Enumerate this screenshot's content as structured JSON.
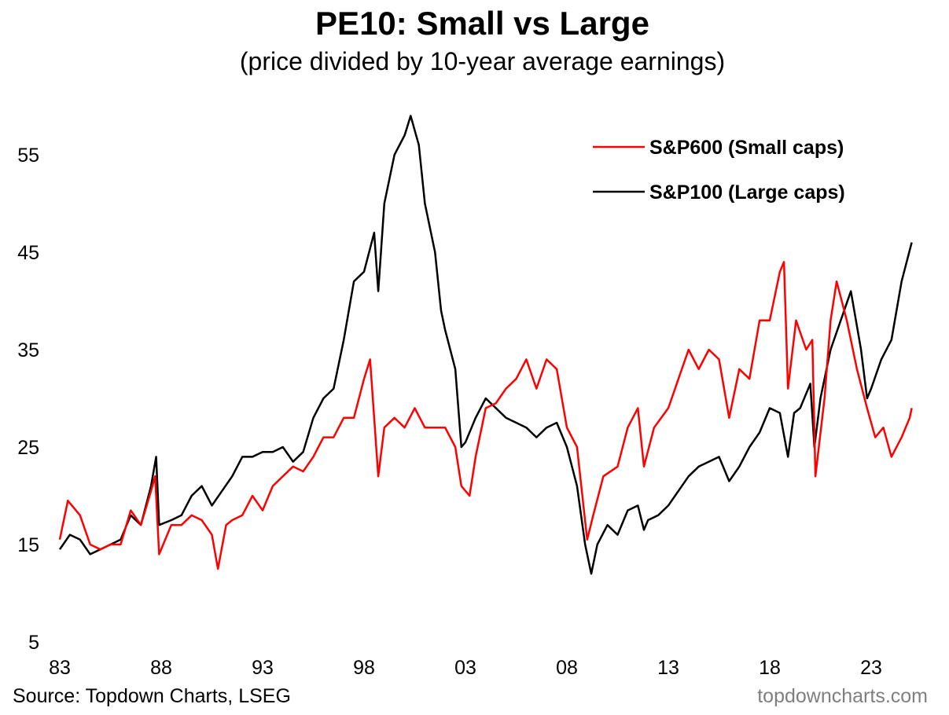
{
  "chart_data": {
    "type": "line",
    "title": "PE10: Small vs Large",
    "subtitle": "(price divided by 10-year average earnings)",
    "xlabel": "",
    "ylabel": "",
    "xlim": [
      1983,
      2025
    ],
    "ylim": [
      5,
      60
    ],
    "yticks": [
      5,
      15,
      25,
      35,
      45,
      55
    ],
    "ytick_labels": [
      "5",
      "15",
      "25",
      "35",
      "45",
      "55"
    ],
    "xticks": [
      1983,
      1988,
      1993,
      1998,
      2003,
      2008,
      2013,
      2018,
      2023
    ],
    "xtick_labels": [
      "83",
      "88",
      "93",
      "98",
      "03",
      "08",
      "13",
      "18",
      "23"
    ],
    "grid": false,
    "legend_position": "top-right",
    "series": [
      {
        "name": "S&P600 (Small caps)",
        "color": "#ff0000",
        "x": [
          1983,
          1983.4,
          1984,
          1984.5,
          1985,
          1985.5,
          1986,
          1986.5,
          1987,
          1987.5,
          1987.7,
          1987.9,
          1988.5,
          1989,
          1989.5,
          1990,
          1990.5,
          1990.8,
          1991.2,
          1991.5,
          1992,
          1992.5,
          1993,
          1993.5,
          1994,
          1994.5,
          1995,
          1995.5,
          1996,
          1996.5,
          1997,
          1997.5,
          1998,
          1998.3,
          1998.7,
          1999,
          1999.5,
          2000,
          2000.5,
          2001,
          2001.5,
          2002,
          2002.5,
          2002.8,
          2003.2,
          2003.5,
          2004,
          2004.5,
          2005,
          2005.5,
          2006,
          2006.5,
          2007,
          2007.5,
          2008,
          2008.5,
          2009,
          2009.3,
          2009.8,
          2010.5,
          2011,
          2011.5,
          2011.8,
          2012.3,
          2013,
          2013.5,
          2014,
          2014.5,
          2015,
          2015.5,
          2016,
          2016.5,
          2017,
          2017.5,
          2018,
          2018.5,
          2018.7,
          2018.9,
          2019.3,
          2019.8,
          2020.1,
          2020.25,
          2020.7,
          2021,
          2021.3,
          2021.8,
          2022.3,
          2022.8,
          2023.2,
          2023.6,
          2024,
          2024.5,
          2024.9,
          2025
        ],
        "values": [
          15.5,
          19.5,
          18,
          15,
          14.5,
          15,
          15,
          18.5,
          17,
          20.5,
          22,
          14,
          17,
          17,
          18,
          17.5,
          16,
          12.5,
          17,
          17.5,
          18,
          20,
          18.5,
          21,
          22,
          23,
          22.5,
          24,
          26,
          26,
          28,
          28,
          32,
          34,
          22,
          27,
          28,
          27,
          29,
          27,
          27,
          27,
          25,
          21,
          20,
          24,
          29,
          29.5,
          31,
          32,
          34,
          31,
          34,
          33,
          27,
          25,
          15.5,
          18,
          22,
          23,
          27,
          29,
          23,
          27,
          29,
          32,
          35,
          33,
          35,
          34,
          28,
          33,
          32,
          38,
          38,
          43,
          44,
          31,
          38,
          35,
          36,
          22,
          30,
          38,
          42,
          38,
          33,
          29,
          26,
          27,
          24,
          26,
          28,
          29
        ]
      },
      {
        "name": "S&P100 (Large caps)",
        "color": "#000000",
        "x": [
          1983,
          1983.5,
          1984,
          1984.5,
          1985,
          1985.5,
          1986,
          1986.5,
          1987,
          1987.5,
          1987.75,
          1987.9,
          1988.5,
          1989,
          1989.5,
          1990,
          1990.5,
          1991,
          1991.5,
          1992,
          1992.5,
          1993,
          1993.5,
          1994,
          1994.5,
          1995,
          1995.5,
          1996,
          1996.5,
          1997,
          1997.5,
          1998,
          1998.5,
          1998.7,
          1999,
          1999.5,
          2000,
          2000.3,
          2000.7,
          2001,
          2001.5,
          2001.8,
          2002,
          2002.5,
          2002.8,
          2003,
          2003.5,
          2004,
          2004.5,
          2005,
          2005.5,
          2006,
          2006.5,
          2007,
          2007.5,
          2008,
          2008.5,
          2008.9,
          2009.2,
          2009.5,
          2010,
          2010.5,
          2011,
          2011.5,
          2011.8,
          2012,
          2012.5,
          2013,
          2013.5,
          2014,
          2014.5,
          2015,
          2015.5,
          2016,
          2016.5,
          2017,
          2017.5,
          2018,
          2018.5,
          2018.9,
          2019.2,
          2019.5,
          2020,
          2020.2,
          2020.5,
          2021,
          2021.5,
          2022,
          2022.5,
          2022.8,
          2023,
          2023.5,
          2024,
          2024.5,
          2025
        ],
        "values": [
          14.5,
          16,
          15.5,
          14,
          14.5,
          15,
          15.5,
          18,
          17,
          21,
          24,
          17,
          17.5,
          18,
          20,
          21,
          19,
          20.5,
          22,
          24,
          24,
          24.5,
          24.5,
          25,
          23.5,
          24.5,
          28,
          30,
          31,
          36,
          42,
          43,
          47,
          41,
          50,
          55,
          57,
          59,
          56,
          50,
          45,
          39,
          37,
          33,
          25,
          25.5,
          28,
          30,
          29,
          28,
          27.5,
          27,
          26,
          27,
          27.5,
          25,
          21,
          15,
          12,
          15,
          17,
          16,
          18.5,
          19,
          16.5,
          17.5,
          18,
          19,
          20.5,
          22,
          23,
          23.5,
          24,
          21.5,
          23,
          25,
          26.5,
          29,
          28.5,
          24,
          28.5,
          29,
          31.5,
          25,
          30,
          35,
          38,
          41,
          35,
          30,
          31,
          34,
          36,
          42,
          46
        ]
      }
    ]
  },
  "footer": {
    "source": "Source: Topdown Charts, LSEG",
    "brand": "topdowncharts.com"
  }
}
